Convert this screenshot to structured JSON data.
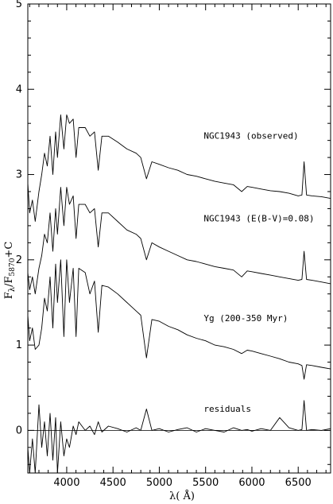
{
  "chart_data": {
    "type": "line",
    "xlabel": "λ( Å)",
    "ylabel": "F_λ/F_5870+C",
    "ylabel_main": "F",
    "ylabel_sub1": "λ",
    "ylabel_mid": "/F",
    "ylabel_sub2": "5870",
    "ylabel_tail": "+C",
    "xlim": [
      3580,
      6850
    ],
    "ylim": [
      -0.5,
      5
    ],
    "xticks": [
      4000,
      4500,
      5000,
      5500,
      6000,
      6500
    ],
    "xtick_labels": [
      "4000",
      "4500",
      "5000",
      "5500",
      "6000",
      "6500"
    ],
    "yticks": [
      0,
      1,
      2,
      3,
      4,
      5
    ],
    "ytick_labels": [
      "0",
      "1",
      "2",
      "3",
      "4",
      "5"
    ],
    "zero_line": 0,
    "series": [
      {
        "name": "NGC1943 (observed)",
        "label_anchor": [
          5480,
          3.42
        ],
        "x": [
          3580,
          3600,
          3630,
          3660,
          3700,
          3730,
          3760,
          3790,
          3820,
          3850,
          3880,
          3900,
          3935,
          3970,
          4000,
          4030,
          4070,
          4101,
          4130,
          4200,
          4250,
          4300,
          4340,
          4380,
          4450,
          4550,
          4650,
          4750,
          4800,
          4861,
          4920,
          5000,
          5100,
          5200,
          5300,
          5400,
          5500,
          5600,
          5700,
          5800,
          5890,
          5950,
          6000,
          6100,
          6200,
          6300,
          6400,
          6500,
          6540,
          6563,
          6590,
          6650,
          6750,
          6850
        ],
        "y": [
          2.9,
          2.55,
          2.7,
          2.45,
          2.8,
          3.0,
          3.25,
          3.1,
          3.45,
          3.0,
          3.5,
          3.2,
          3.7,
          3.3,
          3.7,
          3.6,
          3.65,
          3.2,
          3.55,
          3.55,
          3.45,
          3.5,
          3.05,
          3.45,
          3.45,
          3.38,
          3.3,
          3.25,
          3.2,
          2.95,
          3.15,
          3.12,
          3.08,
          3.05,
          3.0,
          2.98,
          2.95,
          2.92,
          2.9,
          2.88,
          2.8,
          2.86,
          2.85,
          2.83,
          2.81,
          2.8,
          2.78,
          2.75,
          2.76,
          3.15,
          2.76,
          2.75,
          2.74,
          2.72
        ]
      },
      {
        "name": "NGC1943 (E(B-V)=0.08)",
        "label_anchor": [
          5480,
          2.45
        ],
        "x": [
          3580,
          3600,
          3630,
          3660,
          3700,
          3730,
          3760,
          3790,
          3820,
          3850,
          3880,
          3900,
          3935,
          3970,
          4000,
          4030,
          4070,
          4101,
          4130,
          4200,
          4250,
          4300,
          4340,
          4380,
          4450,
          4550,
          4650,
          4750,
          4800,
          4861,
          4920,
          5000,
          5100,
          5200,
          5300,
          5400,
          5500,
          5600,
          5700,
          5800,
          5890,
          5950,
          6000,
          6100,
          6200,
          6300,
          6400,
          6500,
          6540,
          6563,
          6590,
          6650,
          6750,
          6850
        ],
        "y": [
          1.85,
          1.65,
          1.8,
          1.6,
          1.9,
          2.05,
          2.3,
          2.2,
          2.55,
          2.1,
          2.6,
          2.3,
          2.85,
          2.4,
          2.85,
          2.65,
          2.75,
          2.25,
          2.65,
          2.65,
          2.55,
          2.6,
          2.15,
          2.55,
          2.55,
          2.45,
          2.35,
          2.3,
          2.25,
          2.0,
          2.2,
          2.15,
          2.1,
          2.05,
          2.0,
          1.98,
          1.95,
          1.92,
          1.9,
          1.88,
          1.8,
          1.87,
          1.86,
          1.84,
          1.82,
          1.8,
          1.78,
          1.76,
          1.77,
          2.1,
          1.77,
          1.76,
          1.74,
          1.72
        ]
      },
      {
        "name": "Yg (200-350 Myr)",
        "label_anchor": [
          5480,
          1.28
        ],
        "x": [
          3580,
          3600,
          3630,
          3660,
          3700,
          3730,
          3760,
          3790,
          3820,
          3850,
          3880,
          3900,
          3935,
          3970,
          4000,
          4030,
          4070,
          4101,
          4130,
          4200,
          4250,
          4300,
          4340,
          4380,
          4450,
          4550,
          4650,
          4750,
          4800,
          4861,
          4920,
          5000,
          5100,
          5200,
          5300,
          5400,
          5500,
          5600,
          5700,
          5800,
          5890,
          5950,
          6000,
          6100,
          6200,
          6300,
          6400,
          6500,
          6540,
          6563,
          6590,
          6650,
          6750,
          6850
        ],
        "y": [
          1.35,
          1.05,
          1.2,
          0.95,
          1.0,
          1.2,
          1.55,
          1.4,
          1.8,
          1.2,
          1.95,
          1.5,
          2.0,
          1.1,
          2.0,
          1.5,
          1.9,
          1.1,
          1.9,
          1.85,
          1.6,
          1.75,
          1.15,
          1.7,
          1.68,
          1.6,
          1.5,
          1.4,
          1.35,
          0.85,
          1.3,
          1.28,
          1.22,
          1.18,
          1.12,
          1.08,
          1.05,
          1.0,
          0.98,
          0.95,
          0.9,
          0.94,
          0.93,
          0.9,
          0.87,
          0.84,
          0.8,
          0.78,
          0.76,
          0.6,
          0.77,
          0.76,
          0.74,
          0.72
        ]
      },
      {
        "name": "residuals",
        "label_anchor": [
          5480,
          0.22
        ],
        "x": [
          3580,
          3600,
          3630,
          3660,
          3700,
          3730,
          3760,
          3790,
          3820,
          3850,
          3880,
          3900,
          3935,
          3970,
          4000,
          4030,
          4070,
          4101,
          4130,
          4200,
          4250,
          4300,
          4340,
          4380,
          4450,
          4550,
          4650,
          4750,
          4800,
          4861,
          4920,
          5000,
          5100,
          5200,
          5300,
          5400,
          5500,
          5600,
          5700,
          5800,
          5890,
          5950,
          6000,
          6100,
          6200,
          6300,
          6400,
          6500,
          6540,
          6563,
          6590,
          6650,
          6750,
          6850
        ],
        "y": [
          -0.2,
          -0.5,
          -0.1,
          -0.5,
          0.3,
          -0.2,
          0.1,
          -0.3,
          0.2,
          -0.35,
          0.15,
          -0.5,
          0.1,
          -0.3,
          -0.1,
          -0.2,
          0.05,
          -0.05,
          0.1,
          0.0,
          0.05,
          -0.05,
          0.1,
          -0.02,
          0.05,
          0.02,
          -0.02,
          0.03,
          0.0,
          0.25,
          0.0,
          0.02,
          -0.02,
          0.01,
          0.03,
          -0.02,
          0.02,
          0.0,
          -0.02,
          0.03,
          0.0,
          0.01,
          -0.01,
          0.02,
          0.0,
          0.15,
          0.03,
          0.0,
          0.01,
          0.35,
          0.0,
          0.01,
          0.0,
          0.02
        ]
      }
    ],
    "grid": false,
    "legend": "none"
  }
}
